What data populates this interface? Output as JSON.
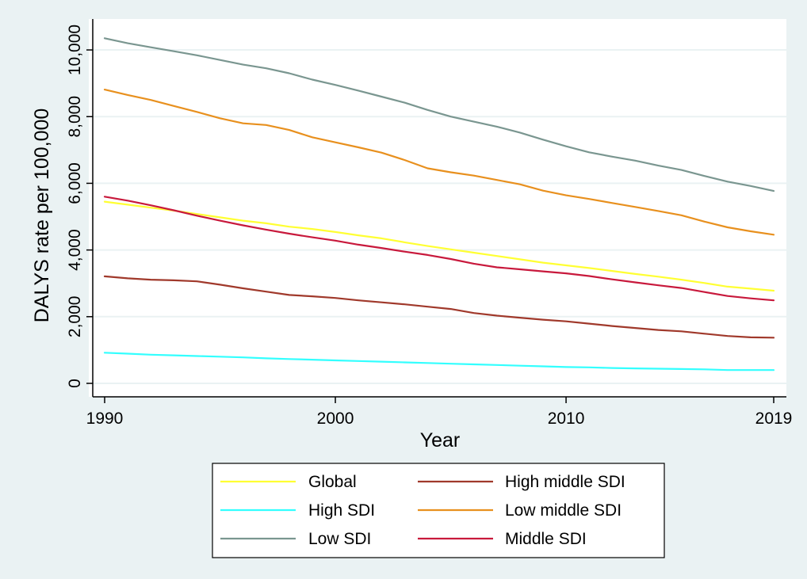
{
  "chart_data": {
    "type": "line",
    "title": "",
    "xlabel": "Year",
    "ylabel": "DALYS rate per 100,000",
    "xlim": [
      1990,
      2019
    ],
    "ylim": [
      0,
      10500
    ],
    "xticks": [
      1990,
      2000,
      2010,
      2019
    ],
    "xtick_labels": [
      "1990",
      "2000",
      "2010",
      "2019"
    ],
    "yticks": [
      0,
      2000,
      4000,
      6000,
      8000,
      10000
    ],
    "ytick_labels": [
      "0",
      "2,000",
      "4,000",
      "6,000",
      "8,000",
      "10,000"
    ],
    "grid": "horizontal",
    "legend_position": "bottom",
    "x": [
      1990,
      1991,
      1992,
      1993,
      1994,
      1995,
      1996,
      1997,
      1998,
      1999,
      2000,
      2001,
      2002,
      2003,
      2004,
      2005,
      2006,
      2007,
      2008,
      2009,
      2010,
      2011,
      2012,
      2013,
      2014,
      2015,
      2016,
      2017,
      2018,
      2019
    ],
    "series": [
      {
        "name": "Global",
        "color": "#ffff33",
        "values": [
          5450,
          5360,
          5270,
          5180,
          5080,
          4980,
          4880,
          4800,
          4700,
          4630,
          4540,
          4440,
          4350,
          4230,
          4120,
          4020,
          3920,
          3820,
          3720,
          3620,
          3540,
          3460,
          3370,
          3280,
          3200,
          3110,
          3010,
          2900,
          2840,
          2780
        ]
      },
      {
        "name": "High middle SDI",
        "color": "#a0392b",
        "values": [
          3210,
          3150,
          3110,
          3090,
          3060,
          2960,
          2850,
          2750,
          2650,
          2610,
          2560,
          2490,
          2430,
          2370,
          2300,
          2230,
          2110,
          2030,
          1970,
          1910,
          1860,
          1790,
          1720,
          1660,
          1600,
          1560,
          1490,
          1420,
          1380,
          1370
        ]
      },
      {
        "name": "High SDI",
        "color": "#33ffff",
        "values": [
          920,
          890,
          860,
          840,
          820,
          800,
          780,
          750,
          730,
          710,
          690,
          670,
          650,
          630,
          610,
          590,
          570,
          550,
          530,
          510,
          490,
          480,
          460,
          450,
          440,
          430,
          420,
          400,
          400,
          400
        ]
      },
      {
        "name": "Low middle SDI",
        "color": "#e8901e",
        "values": [
          8810,
          8650,
          8500,
          8320,
          8140,
          7950,
          7800,
          7750,
          7600,
          7380,
          7230,
          7080,
          6920,
          6700,
          6450,
          6330,
          6230,
          6100,
          5970,
          5780,
          5640,
          5530,
          5410,
          5290,
          5170,
          5040,
          4850,
          4680,
          4560,
          4460
        ]
      },
      {
        "name": "Low SDI",
        "color": "#7a9690",
        "values": [
          10350,
          10200,
          10080,
          9960,
          9840,
          9700,
          9560,
          9450,
          9300,
          9110,
          8950,
          8780,
          8600,
          8420,
          8200,
          8000,
          7850,
          7700,
          7520,
          7310,
          7110,
          6930,
          6800,
          6680,
          6530,
          6400,
          6220,
          6050,
          5920,
          5770
        ]
      },
      {
        "name": "Middle SDI",
        "color": "#c8193c",
        "values": [
          5600,
          5480,
          5340,
          5190,
          5030,
          4880,
          4740,
          4610,
          4490,
          4380,
          4280,
          4160,
          4060,
          3950,
          3850,
          3730,
          3590,
          3480,
          3420,
          3360,
          3300,
          3220,
          3120,
          3030,
          2940,
          2860,
          2740,
          2620,
          2550,
          2490
        ]
      }
    ],
    "legend_order": [
      "Global",
      "High middle SDI",
      "High SDI",
      "Low middle SDI",
      "Low SDI",
      "Middle SDI"
    ]
  }
}
